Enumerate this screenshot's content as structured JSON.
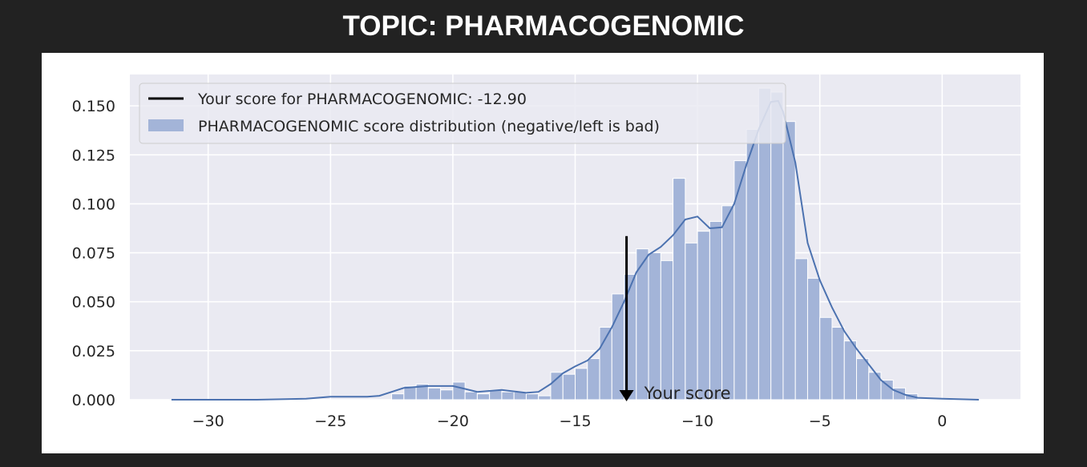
{
  "header": {
    "title": "TOPIC: PHARMACOGENOMIC"
  },
  "chart_data": {
    "type": "bar",
    "title": "",
    "xlabel": "",
    "ylabel": "",
    "xlim": [
      -33.2,
      3.2
    ],
    "ylim": [
      0,
      0.166
    ],
    "xticks": [
      -30,
      -25,
      -20,
      -15,
      -10,
      -5,
      0
    ],
    "xtick_labels": [
      "−30",
      "−25",
      "−20",
      "−15",
      "−10",
      "−5",
      "0"
    ],
    "yticks": [
      0,
      0.025,
      0.05,
      0.075,
      0.1,
      0.125,
      0.15
    ],
    "ytick_labels": [
      "0.000",
      "0.025",
      "0.050",
      "0.075",
      "0.100",
      "0.125",
      "0.150"
    ],
    "grid": true,
    "legend_position": "top-left",
    "colors": {
      "bars": "#a3b4d8",
      "kde": "#4c72b0",
      "score_line": "#000000",
      "plot_bg": "#eaeaf2",
      "grid": "#ffffff"
    },
    "series": [
      {
        "name": "PHARMACOGENOMIC score distribution (negative/left is bad)",
        "kind": "histogram",
        "bin_width": 0.5,
        "bins": [
          [
            -22.5,
            0.003
          ],
          [
            -22.0,
            0.007
          ],
          [
            -21.5,
            0.008
          ],
          [
            -21.0,
            0.006
          ],
          [
            -20.5,
            0.005
          ],
          [
            -20.0,
            0.009
          ],
          [
            -19.5,
            0.004
          ],
          [
            -19.0,
            0.003
          ],
          [
            -18.5,
            0.005
          ],
          [
            -18.0,
            0.004
          ],
          [
            -17.5,
            0.004
          ],
          [
            -17.0,
            0.003
          ],
          [
            -16.5,
            0.002
          ],
          [
            -16.0,
            0.014
          ],
          [
            -15.5,
            0.013
          ],
          [
            -15.0,
            0.016
          ],
          [
            -14.5,
            0.021
          ],
          [
            -14.0,
            0.037
          ],
          [
            -13.5,
            0.054
          ],
          [
            -13.0,
            0.064
          ],
          [
            -12.5,
            0.077
          ],
          [
            -12.0,
            0.075
          ],
          [
            -11.5,
            0.071
          ],
          [
            -11.0,
            0.113
          ],
          [
            -10.5,
            0.08
          ],
          [
            -10.0,
            0.086
          ],
          [
            -9.5,
            0.091
          ],
          [
            -9.0,
            0.099
          ],
          [
            -8.5,
            0.122
          ],
          [
            -8.0,
            0.138
          ],
          [
            -7.5,
            0.159
          ],
          [
            -7.0,
            0.157
          ],
          [
            -6.5,
            0.142
          ],
          [
            -6.0,
            0.072
          ],
          [
            -5.5,
            0.062
          ],
          [
            -5.0,
            0.042
          ],
          [
            -4.5,
            0.037
          ],
          [
            -4.0,
            0.03
          ],
          [
            -3.5,
            0.021
          ],
          [
            -3.0,
            0.014
          ],
          [
            -2.5,
            0.01
          ],
          [
            -2.0,
            0.006
          ],
          [
            -1.5,
            0.003
          ]
        ]
      },
      {
        "name": "kde",
        "kind": "line",
        "points": [
          [
            -31.5,
            0.0
          ],
          [
            -28.0,
            0.0
          ],
          [
            -26.0,
            0.0005
          ],
          [
            -25.0,
            0.0015
          ],
          [
            -24.0,
            0.0015
          ],
          [
            -23.5,
            0.0015
          ],
          [
            -23.0,
            0.002
          ],
          [
            -22.5,
            0.004
          ],
          [
            -22.0,
            0.006
          ],
          [
            -21.0,
            0.007
          ],
          [
            -20.0,
            0.007
          ],
          [
            -19.5,
            0.0055
          ],
          [
            -19.0,
            0.004
          ],
          [
            -18.0,
            0.005
          ],
          [
            -17.0,
            0.0035
          ],
          [
            -16.5,
            0.004
          ],
          [
            -16.0,
            0.008
          ],
          [
            -15.5,
            0.0135
          ],
          [
            -15.0,
            0.017
          ],
          [
            -14.5,
            0.02
          ],
          [
            -14.0,
            0.026
          ],
          [
            -13.5,
            0.037
          ],
          [
            -13.0,
            0.05
          ],
          [
            -12.5,
            0.065
          ],
          [
            -12.0,
            0.074
          ],
          [
            -11.5,
            0.078
          ],
          [
            -11.0,
            0.084
          ],
          [
            -10.5,
            0.092
          ],
          [
            -10.0,
            0.0935
          ],
          [
            -9.5,
            0.0875
          ],
          [
            -9.0,
            0.088
          ],
          [
            -8.5,
            0.1
          ],
          [
            -8.0,
            0.12
          ],
          [
            -7.5,
            0.138
          ],
          [
            -7.0,
            0.152
          ],
          [
            -6.7,
            0.1525
          ],
          [
            -6.5,
            0.147
          ],
          [
            -6.0,
            0.121
          ],
          [
            -5.5,
            0.08
          ],
          [
            -5.0,
            0.061
          ],
          [
            -4.5,
            0.047
          ],
          [
            -4.0,
            0.035
          ],
          [
            -3.5,
            0.026
          ],
          [
            -3.0,
            0.018
          ],
          [
            -2.5,
            0.01
          ],
          [
            -2.0,
            0.005
          ],
          [
            -1.5,
            0.0025
          ],
          [
            -1.0,
            0.001
          ],
          [
            0.0,
            0.0005
          ],
          [
            1.5,
            0.0
          ]
        ]
      },
      {
        "name": "Your score for PHARMACOGENOMIC: -12.90",
        "kind": "vline",
        "x": -12.9,
        "y_top": 0.0835
      }
    ],
    "legend": [
      {
        "label": "Your score for PHARMACOGENOMIC: -12.90",
        "kind": "line"
      },
      {
        "label": "PHARMACOGENOMIC score distribution (negative/left is bad)",
        "kind": "patch"
      }
    ],
    "annotation": {
      "text": "Your score",
      "x": -12.9,
      "y": 0.0
    }
  }
}
